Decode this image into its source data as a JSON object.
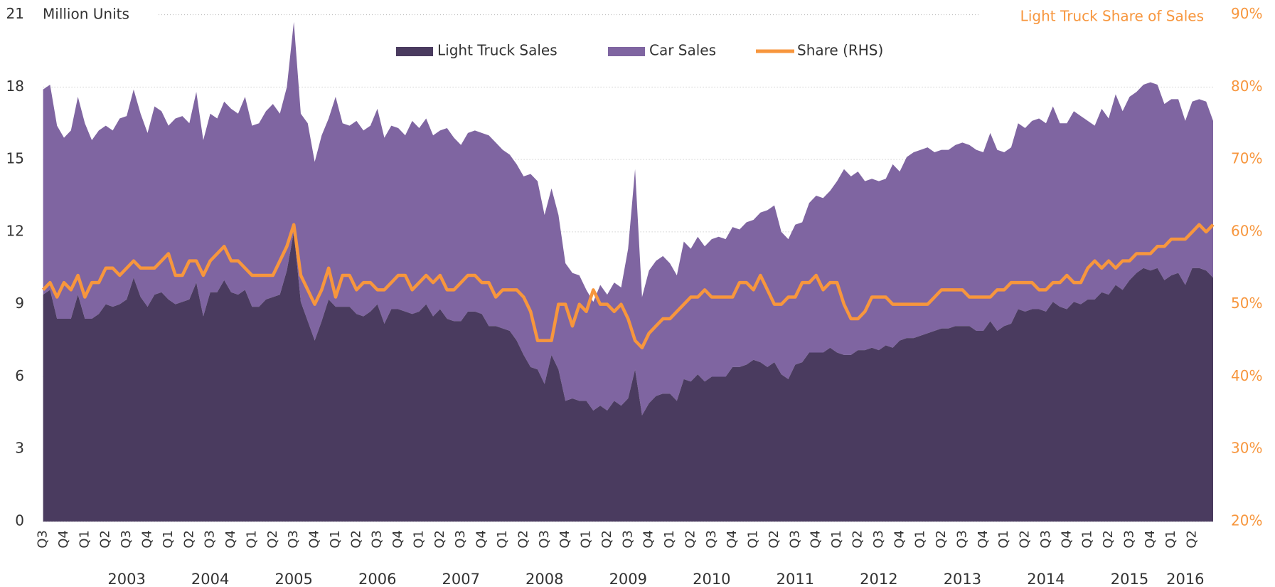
{
  "chart_data": {
    "type": "stacked_area",
    "title": "Million Units",
    "y2_title": "Light Truck Share of Sales",
    "categories": [
      "Q3",
      null,
      null,
      "Q4",
      null,
      null,
      "Q1",
      null,
      null,
      "Q2",
      null,
      null,
      "Q3",
      null,
      null,
      "Q4",
      null,
      null,
      "Q1",
      null,
      null,
      "Q2",
      null,
      null,
      "Q3",
      null,
      null,
      "Q4",
      null,
      null,
      "Q1",
      null,
      null,
      "Q2",
      null,
      null,
      "Q3",
      null,
      null,
      "Q4",
      null,
      null,
      "Q1",
      null,
      null,
      "Q2",
      null,
      null,
      "Q3",
      null,
      null,
      "Q4",
      null,
      null,
      "Q1",
      null,
      null,
      "Q2",
      null,
      null,
      "Q3",
      null,
      null,
      "Q4",
      null,
      null,
      "Q1",
      null,
      null,
      "Q2",
      null,
      null,
      "Q3",
      null,
      null,
      "Q4",
      null,
      null,
      "Q1",
      null,
      null,
      "Q2",
      null,
      null,
      "Q3",
      null,
      null,
      "Q4",
      null,
      null,
      "Q1",
      null,
      null,
      "Q2",
      null,
      null,
      "Q3",
      null,
      null,
      "Q4",
      null,
      null,
      "Q1",
      null,
      null,
      "Q2",
      null,
      null,
      "Q3",
      null,
      null,
      "Q4",
      null,
      null,
      "Q1",
      null,
      null,
      "Q2",
      null,
      null,
      "Q3",
      null,
      null,
      "Q4",
      null,
      null,
      "Q1",
      null,
      null,
      "Q2",
      null,
      null,
      "Q3",
      null,
      null,
      "Q4",
      null,
      null,
      "Q1",
      null,
      null,
      "Q2",
      null,
      null,
      "Q3",
      null,
      null,
      "Q4",
      null,
      null,
      "Q1",
      null,
      null,
      "Q2",
      null,
      null,
      "Q3",
      null,
      null,
      "Q4",
      null,
      null,
      "Q1",
      null,
      null,
      "Q2",
      null,
      null,
      null
    ],
    "years": [
      "2003",
      "2004",
      "2005",
      "2006",
      "2007",
      "2008",
      "2009",
      "2010",
      "2011",
      "2012",
      "2013",
      "2014",
      "2015",
      "2016"
    ],
    "series": [
      {
        "name": "Light Truck Sales",
        "color": "#4a3b5f",
        "values": [
          9.4,
          9.6,
          8.4,
          8.4,
          8.4,
          9.4,
          8.4,
          8.4,
          8.6,
          9.0,
          8.9,
          9.0,
          9.2,
          10.1,
          9.3,
          8.9,
          9.4,
          9.5,
          9.2,
          9.0,
          9.1,
          9.2,
          9.9,
          8.5,
          9.5,
          9.5,
          10.0,
          9.5,
          9.4,
          9.6,
          8.9,
          8.9,
          9.2,
          9.3,
          9.4,
          10.4,
          12.0,
          9.1,
          8.3,
          7.5,
          8.3,
          9.2,
          8.9,
          8.9,
          8.9,
          8.6,
          8.5,
          8.7,
          9.0,
          8.2,
          8.8,
          8.8,
          8.7,
          8.6,
          8.7,
          9.0,
          8.5,
          8.8,
          8.4,
          8.3,
          8.3,
          8.7,
          8.7,
          8.6,
          8.1,
          8.1,
          8.0,
          7.9,
          7.5,
          6.9,
          6.4,
          6.3,
          5.7,
          6.9,
          6.3,
          5.0,
          5.1,
          5.0,
          5.0,
          4.6,
          4.8,
          4.6,
          5.0,
          4.8,
          5.1,
          6.3,
          4.4,
          4.9,
          5.2,
          5.3,
          5.3,
          5.0,
          5.9,
          5.8,
          6.1,
          5.8,
          6.0,
          6.0,
          6.0,
          6.4,
          6.4,
          6.5,
          6.7,
          6.6,
          6.4,
          6.6,
          6.1,
          5.9,
          6.5,
          6.6,
          7.0,
          7.0,
          7.0,
          7.2,
          7.0,
          6.9,
          6.9,
          7.1,
          7.1,
          7.2,
          7.1,
          7.3,
          7.2,
          7.5,
          7.6,
          7.6,
          7.7,
          7.8,
          7.9,
          8.0,
          8.0,
          8.1,
          8.1,
          8.1,
          7.9,
          7.9,
          8.3,
          7.9,
          8.1,
          8.2,
          8.8,
          8.7,
          8.8,
          8.8,
          8.7,
          9.1,
          8.9,
          8.8,
          9.1,
          9.0,
          9.2,
          9.2,
          9.5,
          9.4,
          9.8,
          9.6,
          10.0,
          10.3,
          10.5,
          10.4,
          10.5,
          10.0,
          10.2,
          10.3,
          9.8,
          10.5,
          10.5,
          10.4,
          10.1
        ]
      },
      {
        "name": "Car Sales",
        "color": "#7f65a1",
        "values": [
          8.5,
          8.5,
          8.0,
          7.5,
          7.8,
          8.2,
          8.1,
          7.4,
          7.6,
          7.4,
          7.3,
          7.7,
          7.6,
          7.8,
          7.6,
          7.2,
          7.8,
          7.5,
          7.2,
          7.7,
          7.7,
          7.3,
          7.9,
          7.3,
          7.4,
          7.2,
          7.4,
          7.6,
          7.5,
          8.0,
          7.5,
          7.6,
          7.8,
          8.0,
          7.5,
          7.6,
          8.7,
          7.8,
          8.2,
          7.4,
          7.7,
          7.5,
          8.7,
          7.6,
          7.5,
          8.0,
          7.7,
          7.7,
          8.1,
          7.7,
          7.6,
          7.5,
          7.3,
          8.0,
          7.6,
          7.7,
          7.5,
          7.4,
          7.9,
          7.6,
          7.3,
          7.4,
          7.5,
          7.5,
          7.9,
          7.6,
          7.4,
          7.3,
          7.3,
          7.4,
          8.0,
          7.8,
          7.0,
          6.9,
          6.4,
          5.7,
          5.2,
          5.2,
          4.6,
          4.5,
          5.0,
          4.8,
          4.9,
          4.9,
          6.2,
          8.3,
          4.9,
          5.5,
          5.6,
          5.7,
          5.4,
          5.2,
          5.7,
          5.5,
          5.7,
          5.6,
          5.7,
          5.8,
          5.7,
          5.8,
          5.7,
          5.9,
          5.8,
          6.2,
          6.5,
          6.5,
          5.9,
          5.8,
          5.8,
          5.8,
          6.2,
          6.5,
          6.4,
          6.5,
          7.1,
          7.7,
          7.4,
          7.4,
          7.0,
          7.0,
          7.0,
          6.9,
          7.6,
          7.0,
          7.5,
          7.7,
          7.7,
          7.7,
          7.4,
          7.4,
          7.4,
          7.5,
          7.6,
          7.5,
          7.5,
          7.4,
          7.8,
          7.5,
          7.2,
          7.3,
          7.7,
          7.6,
          7.8,
          7.9,
          7.8,
          8.1,
          7.6,
          7.7,
          7.9,
          7.8,
          7.4,
          7.2,
          7.6,
          7.3,
          7.9,
          7.4,
          7.6,
          7.5,
          7.6,
          7.8,
          7.6,
          7.3,
          7.3,
          7.2,
          6.8,
          6.9,
          7.0,
          7.0,
          6.5
        ]
      },
      {
        "name": "Share (RHS)",
        "color": "#f7963d",
        "axis": "y2",
        "values": [
          52,
          53,
          51,
          53,
          52,
          54,
          51,
          53,
          53,
          55,
          55,
          54,
          55,
          56,
          55,
          55,
          55,
          56,
          57,
          54,
          54,
          56,
          56,
          54,
          56,
          57,
          58,
          56,
          56,
          55,
          54,
          54,
          54,
          54,
          56,
          58,
          61,
          54,
          52,
          50,
          52,
          55,
          51,
          54,
          54,
          52,
          53,
          53,
          52,
          52,
          53,
          54,
          54,
          52,
          53,
          54,
          53,
          54,
          52,
          52,
          53,
          54,
          54,
          53,
          53,
          51,
          52,
          52,
          52,
          51,
          49,
          45,
          45,
          45,
          50,
          50,
          47,
          50,
          49,
          52,
          50,
          50,
          49,
          50,
          48,
          45,
          44,
          46,
          47,
          48,
          48,
          49,
          50,
          51,
          51,
          52,
          51,
          51,
          51,
          51,
          53,
          53,
          52,
          54,
          52,
          50,
          50,
          51,
          51,
          53,
          53,
          54,
          52,
          53,
          53,
          50,
          48,
          48,
          49,
          51,
          51,
          51,
          50,
          50,
          50,
          50,
          50,
          50,
          51,
          52,
          52,
          52,
          52,
          51,
          51,
          51,
          51,
          52,
          52,
          53,
          53,
          53,
          53,
          52,
          52,
          53,
          53,
          54,
          53,
          53,
          55,
          56,
          55,
          56,
          55,
          56,
          56,
          57,
          57,
          57,
          58,
          58,
          59,
          59,
          59,
          60,
          61,
          60,
          61
        ]
      }
    ],
    "ylim": [
      0,
      21
    ],
    "yticks": [
      0,
      3,
      6,
      9,
      12,
      15,
      18,
      21
    ],
    "y2lim": [
      20,
      90
    ],
    "y2ticks": [
      {
        "value": 20,
        "label": "20%"
      },
      {
        "value": 30,
        "label": "30%"
      },
      {
        "value": 40,
        "label": "40%"
      },
      {
        "value": 50,
        "label": "50%"
      },
      {
        "value": 60,
        "label": "60%"
      },
      {
        "value": 70,
        "label": "70%"
      },
      {
        "value": 80,
        "label": "80%"
      },
      {
        "value": 90,
        "label": "90%"
      }
    ],
    "grid": true,
    "legend": "top"
  }
}
